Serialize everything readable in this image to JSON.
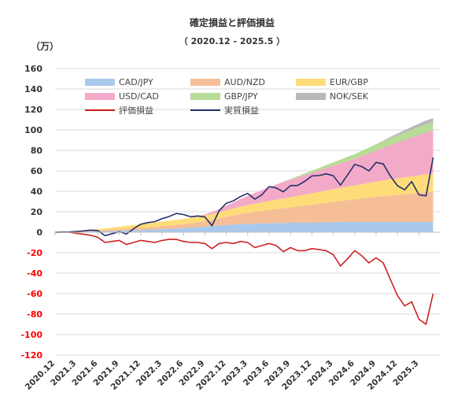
{
  "chart_data": {
    "type": "area",
    "title": "確定損益と評価損益",
    "subtitle": "（ 2020.12 - 2025.5 ）",
    "unit_label": "（万）",
    "ylim": [
      -120,
      160
    ],
    "y_ticks": [
      160,
      140,
      120,
      100,
      80,
      60,
      40,
      20,
      0,
      -20,
      -40,
      -60,
      -80,
      -100,
      -120
    ],
    "x_tick_labels": [
      "2020.12",
      "2021.3",
      "2021.6",
      "2021.9",
      "2021.12",
      "2022.3",
      "2022.6",
      "2022.9",
      "2022.12",
      "2023.3",
      "2023.6",
      "2023.9",
      "2023.12",
      "2024.3",
      "2024.6",
      "2024.9",
      "2024.12",
      "2025.3"
    ],
    "grid": true,
    "legend_position": "top",
    "x_months": [
      0,
      1,
      2,
      3,
      4,
      5,
      6,
      7,
      8,
      9,
      10,
      11,
      12,
      13,
      14,
      15,
      16,
      17,
      18,
      19,
      20,
      21,
      22,
      23,
      24,
      25,
      26,
      27,
      28,
      29,
      30,
      31,
      32,
      33,
      34,
      35,
      36,
      37,
      38,
      39,
      40,
      41,
      42,
      43,
      44,
      45,
      46,
      47,
      48,
      49,
      50,
      51,
      52,
      53
    ],
    "stacked_series": [
      {
        "name": "CAD/JPY",
        "color": "#a9c9ec",
        "values": [
          0,
          0.1,
          0.2,
          0.3,
          0.5,
          0.7,
          0.9,
          1.1,
          1.3,
          1.5,
          1.7,
          1.9,
          2.1,
          2.4,
          2.7,
          3,
          3.3,
          3.7,
          4.1,
          4.5,
          5,
          5.5,
          6,
          6.5,
          7,
          7.4,
          7.8,
          8.1,
          8.4,
          8.6,
          8.8,
          9,
          9.1,
          9.2,
          9.3,
          9.4,
          9.5,
          9.6,
          9.7,
          9.8,
          9.9,
          10,
          10,
          10,
          10,
          10,
          10,
          10,
          10,
          10,
          10,
          10,
          10,
          10
        ]
      },
      {
        "name": "AUD/NZD",
        "color": "#f5be97",
        "values": [
          0,
          0.1,
          0.2,
          0.3,
          0.5,
          0.7,
          0.9,
          1.1,
          1.3,
          1.5,
          1.7,
          1.9,
          2.1,
          2.4,
          2.6,
          2.9,
          3.2,
          3.5,
          3.8,
          4.1,
          4.6,
          5.2,
          6,
          7,
          8,
          9,
          10,
          10.8,
          11.5,
          12.2,
          12.9,
          13.6,
          14.3,
          15,
          15.8,
          16.6,
          17.4,
          18.2,
          19,
          19.8,
          20.6,
          21.4,
          22.2,
          23,
          23.8,
          24.6,
          25.4,
          26,
          26.6,
          27.2,
          27.8,
          28.4,
          29,
          29.5
        ]
      },
      {
        "name": "EUR/GBP",
        "color": "#fedc79",
        "values": [
          0,
          0.1,
          0.2,
          0.4,
          0.6,
          0.9,
          1.2,
          1.6,
          2,
          2.4,
          2.8,
          3.2,
          3.6,
          3.9,
          4.2,
          4.5,
          4.7,
          5,
          5.2,
          5.3,
          5.4,
          5.6,
          5.8,
          6,
          6.4,
          6.8,
          7.2,
          7.6,
          8,
          8.4,
          8.8,
          9.2,
          9.6,
          10,
          10.4,
          10.8,
          11.2,
          11.6,
          12,
          12.4,
          12.8,
          13.2,
          13.6,
          14,
          14.4,
          14.8,
          15.2,
          15.6,
          16,
          16.4,
          16.8,
          17.2,
          17.6,
          18
        ]
      },
      {
        "name": "USD/CAD",
        "color": "#f3aac8",
        "values": [
          0,
          0,
          0,
          0,
          0,
          0,
          0,
          0,
          0,
          0,
          0,
          0,
          0,
          0,
          0,
          0,
          0,
          0,
          0,
          0,
          0.5,
          1.2,
          2,
          3,
          4.5,
          6,
          7.5,
          9,
          10.5,
          12,
          13.5,
          14.8,
          16,
          17,
          18,
          19,
          20,
          21,
          22,
          23,
          24,
          25,
          26,
          27.5,
          29,
          30.5,
          32,
          33.5,
          35,
          36.5,
          38,
          39.5,
          41,
          42
        ]
      },
      {
        "name": "GBP/JPY",
        "color": "#b8db97",
        "values": [
          0,
          0,
          0,
          0,
          0,
          0,
          0,
          0,
          0,
          0,
          0,
          0,
          0,
          0,
          0,
          0,
          0,
          0,
          0,
          0,
          0,
          0,
          0,
          0,
          0,
          0,
          0,
          0,
          0,
          0,
          0,
          0.2,
          0.5,
          0.8,
          1.2,
          1.6,
          2,
          2.4,
          2.8,
          3.2,
          3.6,
          4,
          4.5,
          5,
          5.5,
          6,
          6.5,
          7,
          7.2,
          7.4,
          7.6,
          7.8,
          8,
          8
        ]
      },
      {
        "name": "NOK/SEK",
        "color": "#b8b8b8",
        "values": [
          0,
          0,
          0,
          0,
          0,
          0,
          0,
          0,
          0,
          0,
          0,
          0,
          0,
          0,
          0,
          0,
          0,
          0,
          0,
          0,
          0,
          0,
          0,
          0,
          0,
          0,
          0,
          0,
          0,
          0,
          0,
          0,
          0,
          0,
          0,
          0,
          0,
          0,
          0,
          0,
          0,
          0,
          0,
          0,
          0,
          0,
          0.5,
          1,
          1.6,
          2.2,
          2.8,
          3.2,
          3.6,
          4
        ]
      }
    ],
    "line_series": [
      {
        "name": "評価損益",
        "color": "#cc2222",
        "values": [
          0,
          0,
          0,
          -1,
          -2,
          -3,
          -5,
          -10,
          -9,
          -8,
          -12,
          -10,
          -8,
          -9,
          -10,
          -8,
          -7,
          -7,
          -9,
          -10,
          -10,
          -11,
          -16,
          -11,
          -10,
          -11,
          -9,
          -10,
          -15,
          -13,
          -11,
          -13,
          -19,
          -15,
          -18,
          -18,
          -16,
          -17,
          -18,
          -22,
          -33,
          -26,
          -18,
          -23,
          -30,
          -25,
          -30,
          -46,
          -62,
          -72,
          -68,
          -85,
          -90,
          -60
        ]
      },
      {
        "name": "実質損益",
        "color": "#26306a",
        "values": [
          0,
          0.2,
          0.4,
          0.8,
          1.3,
          2.1,
          1.6,
          -3.4,
          -1.4,
          0.5,
          -1.8,
          3.4,
          7.8,
          9.4,
          10.4,
          13.3,
          15.4,
          18.3,
          17.3,
          15.1,
          15.9,
          14.9,
          6.3,
          21.1,
          28.3,
          30.7,
          34.9,
          37.9,
          32.3,
          36.6,
          44.6,
          43.2,
          39.5,
          45.5,
          45.7,
          49.8,
          55,
          55.4,
          57.1,
          55.2,
          46,
          55.9,
          66.3,
          64.1,
          59.9,
          68.2,
          66.8,
          55,
          45.4,
          41.5,
          49.5,
          36.6,
          35.5,
          73
        ]
      }
    ]
  }
}
